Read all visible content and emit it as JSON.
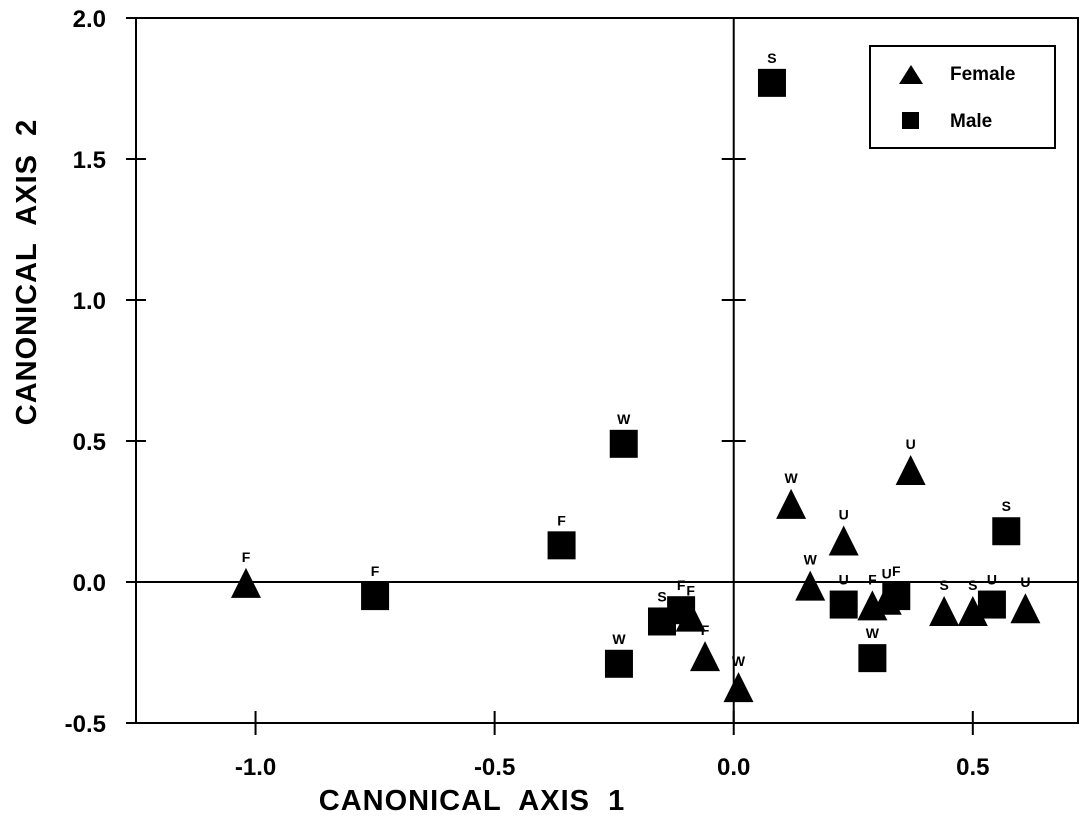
{
  "chart_data": {
    "type": "scatter",
    "xlabel": "CANONICAL  AXIS  1",
    "ylabel": "CANONICAL  AXIS  2",
    "xlim": [
      -1.25,
      0.72
    ],
    "ylim": [
      -0.5,
      2.0
    ],
    "xticks": [
      -1.0,
      -0.5,
      0.0,
      0.5
    ],
    "xtick_labels": [
      "-1.0",
      "-0.5",
      "0.0",
      "0.5"
    ],
    "yticks": [
      -0.5,
      0.0,
      0.5,
      1.0,
      1.5,
      2.0
    ],
    "ytick_labels": [
      "-0.5",
      "0.0",
      "0.5",
      "1.0",
      "1.5",
      "2.0"
    ],
    "grid": false,
    "reference_lines": {
      "x": 0.0,
      "y": 0.0
    },
    "legend_position": "top-right",
    "series": [
      {
        "name": "Female",
        "marker": "triangle",
        "points": [
          {
            "x": -1.02,
            "y": -0.01,
            "label": "F"
          },
          {
            "x": -0.09,
            "y": -0.13,
            "label": "F"
          },
          {
            "x": -0.06,
            "y": -0.27,
            "label": "F"
          },
          {
            "x": 0.01,
            "y": -0.38,
            "label": "W"
          },
          {
            "x": 0.12,
            "y": 0.27,
            "label": "W"
          },
          {
            "x": 0.16,
            "y": -0.02,
            "label": "W"
          },
          {
            "x": 0.23,
            "y": 0.14,
            "label": "U"
          },
          {
            "x": 0.29,
            "y": -0.09,
            "label": "F"
          },
          {
            "x": 0.32,
            "y": -0.07,
            "label": "U"
          },
          {
            "x": 0.37,
            "y": 0.39,
            "label": "U"
          },
          {
            "x": 0.44,
            "y": -0.11,
            "label": "S"
          },
          {
            "x": 0.5,
            "y": -0.11,
            "label": "S"
          },
          {
            "x": 0.61,
            "y": -0.1,
            "label": "U"
          }
        ]
      },
      {
        "name": "Male",
        "marker": "square",
        "points": [
          {
            "x": 0.08,
            "y": 1.77,
            "label": "S"
          },
          {
            "x": -0.23,
            "y": 0.49,
            "label": "W"
          },
          {
            "x": -0.36,
            "y": 0.13,
            "label": "F"
          },
          {
            "x": -0.75,
            "y": -0.05,
            "label": "F"
          },
          {
            "x": -0.15,
            "y": -0.14,
            "label": "S"
          },
          {
            "x": -0.11,
            "y": -0.1,
            "label": "F"
          },
          {
            "x": -0.24,
            "y": -0.29,
            "label": "W"
          },
          {
            "x": 0.23,
            "y": -0.08,
            "label": "U"
          },
          {
            "x": 0.34,
            "y": -0.05,
            "label": "F"
          },
          {
            "x": 0.29,
            "y": -0.27,
            "label": "W"
          },
          {
            "x": 0.54,
            "y": -0.08,
            "label": "U"
          },
          {
            "x": 0.57,
            "y": 0.18,
            "label": "S"
          }
        ]
      }
    ]
  }
}
